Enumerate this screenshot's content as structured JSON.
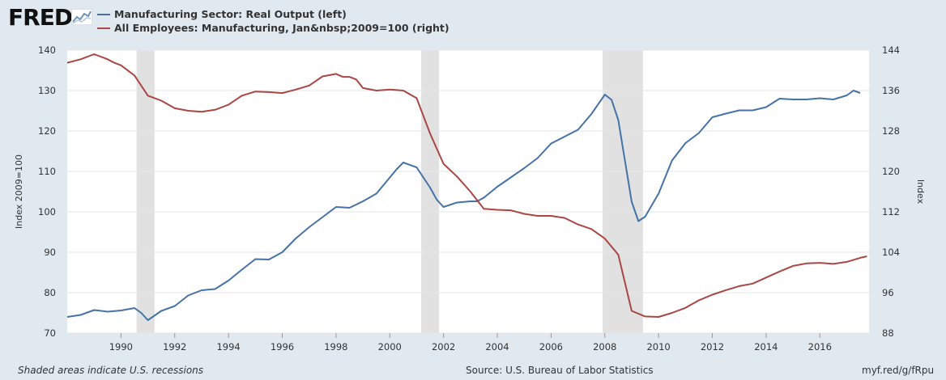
{
  "header": {
    "logo_text": "FRED",
    "logo_icon": "chart-line-icon"
  },
  "colors": {
    "series_left": "#4572a7",
    "series_right": "#aa4643",
    "recession": "#e1e1e1",
    "grid": "#e6e6e6",
    "background": "#e1e9f0"
  },
  "chart_data": {
    "type": "line",
    "series": [
      {
        "name": "Manufacturing Sector: Real Output (left)",
        "legend_label": "Manufacturing Sector: Real Output (left)",
        "axis": "left",
        "x": [
          1988.0,
          1988.5,
          1989.0,
          1989.5,
          1990.0,
          1990.5,
          1990.75,
          1991.0,
          1991.5,
          1992.0,
          1992.5,
          1993.0,
          1993.5,
          1994.0,
          1994.5,
          1995.0,
          1995.5,
          1996.0,
          1996.5,
          1997.0,
          1997.5,
          1998.0,
          1998.5,
          1999.0,
          1999.5,
          2000.0,
          2000.25,
          2000.5,
          2001.0,
          2001.5,
          2001.75,
          2002.0,
          2002.5,
          2003.0,
          2003.25,
          2003.5,
          2004.0,
          2004.5,
          2005.0,
          2005.5,
          2006.0,
          2006.5,
          2007.0,
          2007.5,
          2008.0,
          2008.25,
          2008.5,
          2009.0,
          2009.25,
          2009.5,
          2010.0,
          2010.5,
          2011.0,
          2011.5,
          2012.0,
          2012.5,
          2013.0,
          2013.5,
          2014.0,
          2014.5,
          2015.0,
          2015.5,
          2016.0,
          2016.5,
          2017.0,
          2017.25,
          2017.5
        ],
        "values": [
          74,
          74.5,
          75.7,
          75.3,
          75.6,
          76.2,
          75,
          73.2,
          75.5,
          76.7,
          79.3,
          80.6,
          80.9,
          83,
          85.7,
          88.3,
          88.2,
          90,
          93.4,
          96.2,
          98.7,
          101.2,
          101,
          102.6,
          104.5,
          108.5,
          110.5,
          112.2,
          111,
          106,
          103,
          101.2,
          102.3,
          102.6,
          102.6,
          103.5,
          106.2,
          108.5,
          110.8,
          113.3,
          116.9,
          118.6,
          120.3,
          124.2,
          129,
          127.7,
          122.7,
          102.5,
          97.7,
          98.8,
          104.5,
          112.7,
          117,
          119.5,
          123.4,
          124.3,
          125.1,
          125.1,
          125.9,
          128,
          127.8,
          127.8,
          128.1,
          127.8,
          128.8,
          130,
          129.4
        ]
      },
      {
        "name": "All Employees: Manufacturing, Jan&nbsp;2009=100 (right)",
        "legend_label": "All Employees: Manufacturing, Jan&nbsp;2009=100 (right)",
        "axis": "right",
        "x": [
          1988.0,
          1988.5,
          1989.0,
          1989.5,
          1989.75,
          1990.0,
          1990.5,
          1991.0,
          1991.5,
          1992.0,
          1992.5,
          1993.0,
          1993.5,
          1994.0,
          1994.5,
          1995.0,
          1995.5,
          1996.0,
          1996.5,
          1997.0,
          1997.5,
          1998.0,
          1998.25,
          1998.5,
          1998.75,
          1999.0,
          1999.5,
          2000.0,
          2000.5,
          2001.0,
          2001.5,
          2002.0,
          2002.5,
          2003.0,
          2003.5,
          2004.0,
          2004.5,
          2005.0,
          2005.5,
          2006.0,
          2006.5,
          2007.0,
          2007.5,
          2008.0,
          2008.5,
          2009.0,
          2009.5,
          2010.0,
          2010.5,
          2011.0,
          2011.5,
          2012.0,
          2012.5,
          2013.0,
          2013.5,
          2014.0,
          2014.5,
          2015.0,
          2015.5,
          2016.0,
          2016.5,
          2017.0,
          2017.5,
          2017.75
        ],
        "values": [
          141.5,
          142.2,
          143.2,
          142.2,
          141.5,
          141,
          139,
          135,
          134,
          132.5,
          132,
          131.8,
          132.2,
          133.2,
          135,
          135.8,
          135.7,
          135.5,
          136.2,
          137,
          138.8,
          139.3,
          138.7,
          138.7,
          138.2,
          136.5,
          136,
          136.2,
          136,
          134.5,
          127.5,
          121.5,
          119,
          116,
          112.6,
          112.4,
          112.3,
          111.6,
          111.2,
          111.2,
          110.8,
          109.5,
          108.6,
          106.7,
          103.5,
          92.4,
          91.3,
          91.2,
          92,
          93,
          94.5,
          95.6,
          96.5,
          97.3,
          97.8,
          99,
          100.2,
          101.3,
          101.8,
          101.9,
          101.7,
          102.1,
          102.9,
          103.2
        ]
      }
    ],
    "recessions": [
      [
        1990.58,
        1991.25
      ],
      [
        2001.17,
        2001.83
      ],
      [
        2007.92,
        2009.42
      ]
    ],
    "xlim": [
      1988.0,
      2017.83
    ],
    "x_ticks": [
      1990,
      1992,
      1994,
      1996,
      1998,
      2000,
      2002,
      2004,
      2006,
      2008,
      2010,
      2012,
      2014,
      2016
    ],
    "x_tick_labels": [
      "1990",
      "1992",
      "1994",
      "1996",
      "1998",
      "2000",
      "2002",
      "2004",
      "2006",
      "2008",
      "2010",
      "2012",
      "2014",
      "2016"
    ],
    "ylim_left": [
      70,
      140
    ],
    "y_ticks_left": [
      70,
      80,
      90,
      100,
      110,
      120,
      130,
      140
    ],
    "y_tick_labels_left": [
      "70",
      "80",
      "90",
      "100",
      "110",
      "120",
      "130",
      "140"
    ],
    "ylim_right": [
      88,
      144
    ],
    "y_ticks_right": [
      88,
      96,
      104,
      112,
      120,
      128,
      136,
      144
    ],
    "y_tick_labels_right": [
      "88",
      "96",
      "104",
      "112",
      "120",
      "128",
      "136",
      "144"
    ],
    "ylabel_left": "Index 2009=100",
    "ylabel_right": "Index",
    "xlabel": "",
    "grid": true
  },
  "footer": {
    "note": "Shaded areas indicate U.S. recessions",
    "source": "Source: U.S. Bureau of Labor Statistics",
    "url": "myf.red/g/fRpu"
  }
}
